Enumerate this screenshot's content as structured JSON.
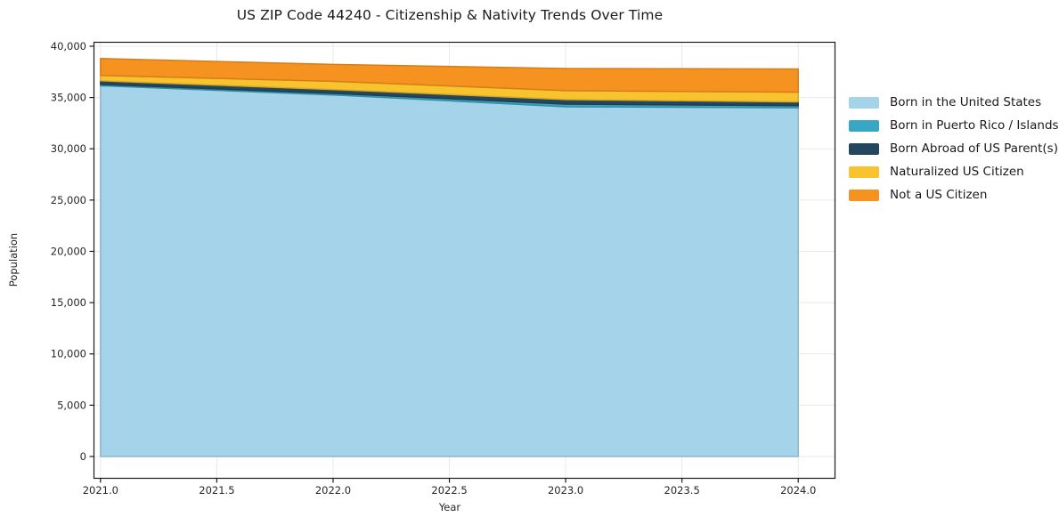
{
  "chart_data": {
    "type": "area",
    "stacked": true,
    "title": "US ZIP Code 44240 - Citizenship & Nativity Trends Over Time",
    "xlabel": "Year",
    "ylabel": "Population",
    "x": [
      2021,
      2022,
      2023,
      2024
    ],
    "series": [
      {
        "name": "Born in the United States",
        "color": "#a5d3e9",
        "values": [
          36150,
          35250,
          34100,
          34000
        ]
      },
      {
        "name": "Born in Puerto Rico / Islands",
        "color": "#39a7c3",
        "values": [
          130,
          150,
          260,
          200
        ]
      },
      {
        "name": "Born Abroad of US Parent(s)",
        "color": "#25475d",
        "values": [
          350,
          380,
          440,
          370
        ]
      },
      {
        "name": "Naturalized US Citizen",
        "color": "#f9c32d",
        "values": [
          520,
          800,
          870,
          950
        ]
      },
      {
        "name": "Not a US Citizen",
        "color": "#f6921f",
        "values": [
          1650,
          1650,
          2160,
          2260
        ]
      }
    ],
    "totals": [
      38800,
      38230,
      37830,
      37780
    ],
    "xticks": [
      2021.0,
      2021.5,
      2022.0,
      2022.5,
      2023.0,
      2023.5,
      2024.0
    ],
    "xtick_labels": [
      "2021.0",
      "2021.5",
      "2022.0",
      "2022.5",
      "2023.0",
      "2023.5",
      "2024.0"
    ],
    "yticks": [
      0,
      5000,
      10000,
      15000,
      20000,
      25000,
      30000,
      35000,
      40000
    ],
    "ytick_labels": [
      "0",
      "5,000",
      "10,000",
      "15,000",
      "20,000",
      "25,000",
      "30,000",
      "35,000",
      "40,000"
    ],
    "xlim": [
      2020.97,
      2024.16
    ],
    "ylim": [
      -2170,
      40430
    ],
    "grid": true,
    "grid_color": "#e9e9e9",
    "frame_color": "#1b1b1b",
    "legend_position": "right"
  }
}
